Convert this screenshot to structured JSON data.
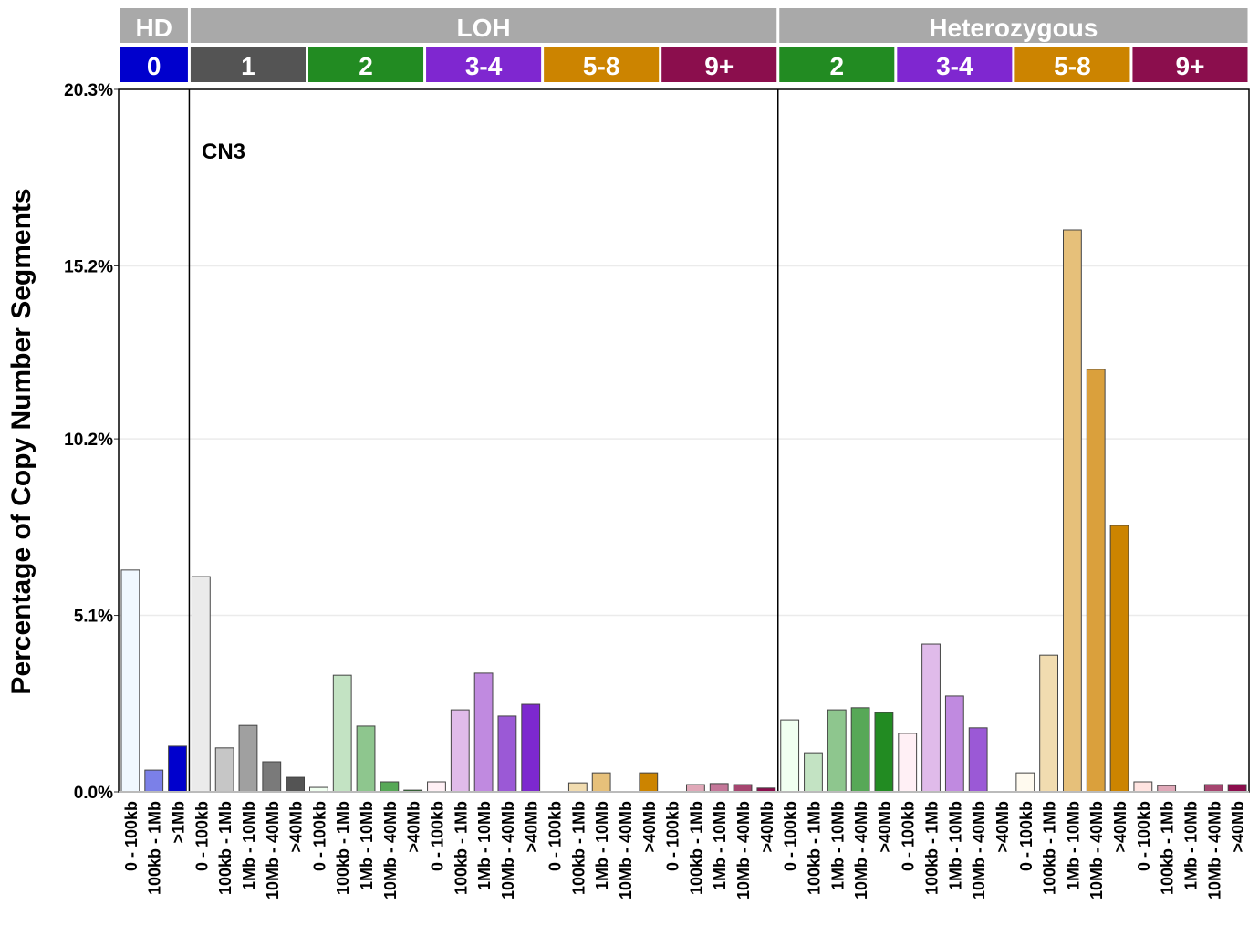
{
  "chart_data": {
    "type": "bar",
    "ylabel": "Percentage of Copy Number Segments",
    "annotation": "CN3",
    "ylim": [
      0,
      20.3
    ],
    "yticks": [
      "0.0%",
      "5.1%",
      "10.2%",
      "15.2%",
      "20.3%"
    ],
    "ytick_values": [
      0,
      5.1,
      10.2,
      15.2,
      20.3
    ],
    "grid": true,
    "header_color": "#a9a9a9",
    "top_groups": [
      {
        "label": "HD",
        "subgroups": [
          0
        ]
      },
      {
        "label": "LOH",
        "subgroups": [
          1,
          2,
          3,
          4,
          5
        ]
      },
      {
        "label": "Heterozygous",
        "subgroups": [
          6,
          7,
          8,
          9
        ]
      }
    ],
    "subgroups": [
      {
        "label": "0",
        "color": "#0000cd",
        "categories": [
          "0 - 100kb",
          "100kb - 1Mb",
          ">1Mb"
        ],
        "colors": [
          "#f0f8ff",
          "#7b80e8",
          "#0000cd"
        ],
        "values": [
          6.41,
          0.63,
          1.32
        ]
      },
      {
        "label": "1",
        "color": "#545454",
        "categories": [
          "0 - 100kb",
          "100kb - 1Mb",
          "1Mb - 10Mb",
          "10Mb - 40Mb",
          ">40Mb"
        ],
        "colors": [
          "#ebebeb",
          "#c6c6c6",
          "#a0a0a0",
          "#7a7a7a",
          "#545454"
        ],
        "values": [
          6.22,
          1.27,
          1.92,
          0.87,
          0.42
        ]
      },
      {
        "label": "2",
        "color": "#228b22",
        "categories": [
          "0 - 100kb",
          "100kb - 1Mb",
          "1Mb - 10Mb",
          "10Mb - 40Mb",
          ">40Mb"
        ],
        "colors": [
          "#f0fff0",
          "#c3e3c3",
          "#8ec68e",
          "#57a857",
          "#228b22"
        ],
        "values": [
          0.13,
          3.37,
          1.9,
          0.29,
          0.05
        ]
      },
      {
        "label": "3-4",
        "color": "#7f27d0",
        "categories": [
          "0 - 100kb",
          "100kb - 1Mb",
          "1Mb - 10Mb",
          "10Mb - 40Mb",
          ">40Mb"
        ],
        "colors": [
          "#fff0f5",
          "#e0bbea",
          "#c08ae0",
          "#9b59d6",
          "#7d28cf"
        ],
        "values": [
          0.29,
          2.37,
          3.43,
          2.19,
          2.53
        ]
      },
      {
        "label": "5-8",
        "color": "#cc8400",
        "categories": [
          "0 - 100kb",
          "100kb - 1Mb",
          "1Mb - 10Mb",
          "10Mb - 40Mb",
          ">40Mb"
        ],
        "colors": [
          "#fffaef",
          "#f1dcb0",
          "#e6c07a",
          "#daa03c",
          "#cc8400"
        ],
        "values": [
          0,
          0.26,
          0.55,
          0,
          0.55
        ]
      },
      {
        "label": "9+",
        "color": "#8b0e4d",
        "categories": [
          "0 - 100kb",
          "100kb - 1Mb",
          "1Mb - 10Mb",
          "10Mb - 40Mb",
          ">40Mb"
        ],
        "colors": [
          "#ffe4e1",
          "#e0a8b8",
          "#c47799",
          "#a5456f",
          "#8b0e4d"
        ],
        "values": [
          0,
          0.21,
          0.24,
          0.21,
          0.11
        ]
      },
      {
        "label": "2",
        "color": "#228b22",
        "categories": [
          "0 - 100kb",
          "100kb - 1Mb",
          "1Mb - 10Mb",
          "10Mb - 40Mb",
          ">40Mb"
        ],
        "colors": [
          "#f0fff0",
          "#c3e3c3",
          "#8ec68e",
          "#57a857",
          "#228b22"
        ],
        "values": [
          2.08,
          1.13,
          2.37,
          2.43,
          2.29
        ]
      },
      {
        "label": "3-4",
        "color": "#7f27d0",
        "categories": [
          "0 - 100kb",
          "100kb - 1Mb",
          "1Mb - 10Mb",
          "10Mb - 40Mb",
          ">40Mb"
        ],
        "colors": [
          "#fff0f5",
          "#e0bbea",
          "#c08ae0",
          "#9b59d6",
          "#7d28cf"
        ],
        "values": [
          1.69,
          4.27,
          2.77,
          1.85,
          0
        ]
      },
      {
        "label": "5-8",
        "color": "#cc8400",
        "categories": [
          "0 - 100kb",
          "100kb - 1Mb",
          "1Mb - 10Mb",
          "10Mb - 40Mb",
          ">40Mb"
        ],
        "colors": [
          "#fffaef",
          "#f1dcb0",
          "#e6c07a",
          "#daa03c",
          "#cc8400"
        ],
        "values": [
          0.55,
          3.95,
          16.24,
          12.21,
          7.7
        ]
      },
      {
        "label": "9+",
        "color": "#8b0e4d",
        "categories": [
          "0 - 100kb",
          "100kb - 1Mb",
          "1Mb - 10Mb",
          "10Mb - 40Mb",
          ">40Mb"
        ],
        "colors": [
          "#ffe4e1",
          "#e0a8b8",
          "#c47799",
          "#a5456f",
          "#8b0e4d"
        ],
        "values": [
          0.29,
          0.18,
          0,
          0.21,
          0.21
        ]
      }
    ]
  }
}
